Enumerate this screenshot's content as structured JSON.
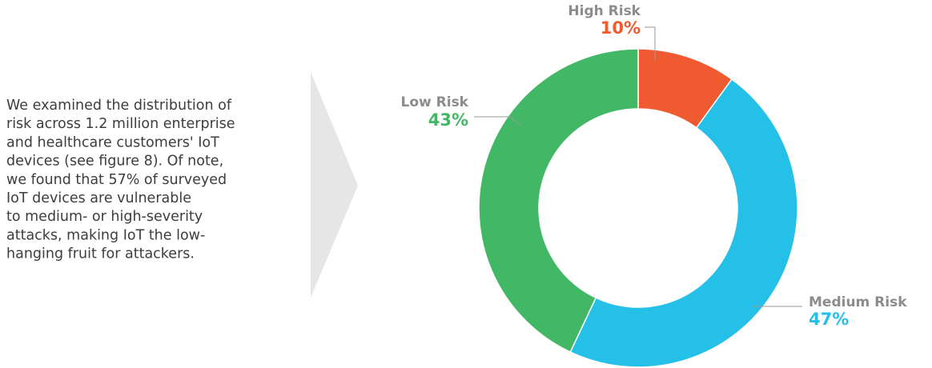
{
  "paragraph": [
    "We examined the distribution of",
    "risk across 1.2 million enterprise",
    "and healthcare customers' IoT",
    "devices (see figure 8). Of note,",
    "we found that 57% of surveyed",
    "IoT devices are vulnerable",
    "to medium- or high-severity",
    "attacks, making IoT the low-",
    "hanging fruit for attackers."
  ],
  "chart_data": {
    "type": "donut",
    "categories": [
      "High Risk",
      "Medium Risk",
      "Low Risk"
    ],
    "values": [
      10,
      47,
      43
    ],
    "value_labels": [
      "10%",
      "47%",
      "43%"
    ],
    "colors": [
      "#f05a30",
      "#25c0e8",
      "#42b866"
    ]
  }
}
